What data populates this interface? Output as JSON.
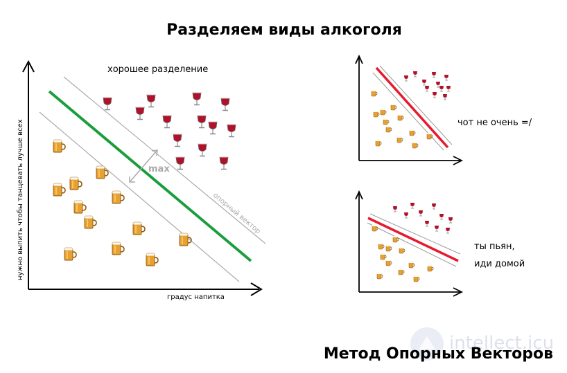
{
  "title": "Разделяем виды алкоголя",
  "main_plot": {
    "good_label": "хорошее разделение",
    "ylabel": "нужно выпить чтобы танцевать лучше всех",
    "xlabel": "градус напитка",
    "margin_label": "max",
    "support_label": "опорный вектор"
  },
  "plot_bad": {
    "caption": "чот не очень =/"
  },
  "plot_drunk": {
    "caption_line1": "ты пьян,",
    "caption_line2": "иди домой"
  },
  "footer": "Метод Опорных Векторов",
  "watermark": "intellect.icu",
  "icons": {
    "wine": "wine-glass-icon",
    "beer": "beer-mug-icon"
  },
  "colors": {
    "good_line": "#1a9e3c",
    "bad_line": "#e8192c",
    "support": "#aaaaaa"
  }
}
